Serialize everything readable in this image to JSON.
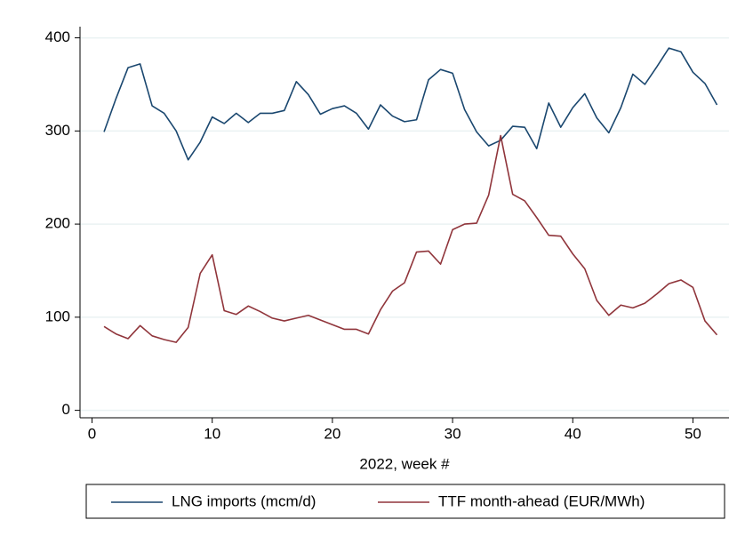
{
  "chart_data": {
    "type": "line",
    "xlabel": "2022, week #",
    "x": [
      1,
      2,
      3,
      4,
      5,
      6,
      7,
      8,
      9,
      10,
      11,
      12,
      13,
      14,
      15,
      16,
      17,
      18,
      19,
      20,
      21,
      22,
      23,
      24,
      25,
      26,
      27,
      28,
      29,
      30,
      31,
      32,
      33,
      34,
      35,
      36,
      37,
      38,
      39,
      40,
      41,
      42,
      43,
      44,
      45,
      46,
      47,
      48,
      49,
      50,
      51,
      52
    ],
    "series": [
      {
        "name": "LNG imports (mcm/d)",
        "color": "#1a476f",
        "values": [
          299,
          335,
          368,
          372,
          327,
          319,
          300,
          269,
          288,
          315,
          308,
          319,
          309,
          319,
          319,
          322,
          353,
          339,
          318,
          324,
          327,
          319,
          302,
          328,
          316,
          310,
          312,
          355,
          366,
          362,
          323,
          299,
          284,
          290,
          305,
          304,
          281,
          330,
          304,
          325,
          340,
          314,
          298,
          325,
          361,
          350,
          369,
          389,
          385,
          363,
          351,
          328
        ]
      },
      {
        "name": "TTF month-ahead (EUR/MWh)",
        "color": "#90353b",
        "values": [
          90,
          82,
          77,
          91,
          80,
          76,
          73,
          89,
          147,
          167,
          107,
          103,
          112,
          106,
          99,
          96,
          99,
          102,
          97,
          92,
          87,
          87,
          82,
          108,
          128,
          137,
          170,
          171,
          157,
          194,
          200,
          201,
          231,
          295,
          232,
          225,
          207,
          188,
          187,
          168,
          152,
          118,
          102,
          113,
          110,
          115,
          125,
          136,
          140,
          132,
          96,
          81
        ]
      }
    ],
    "xlim": [
      -1,
      53
    ],
    "ylim": [
      -8,
      412
    ],
    "xticks": [
      0,
      10,
      20,
      30,
      40,
      50
    ],
    "yticks": [
      0,
      100,
      200,
      300,
      400
    ],
    "grid": true
  }
}
